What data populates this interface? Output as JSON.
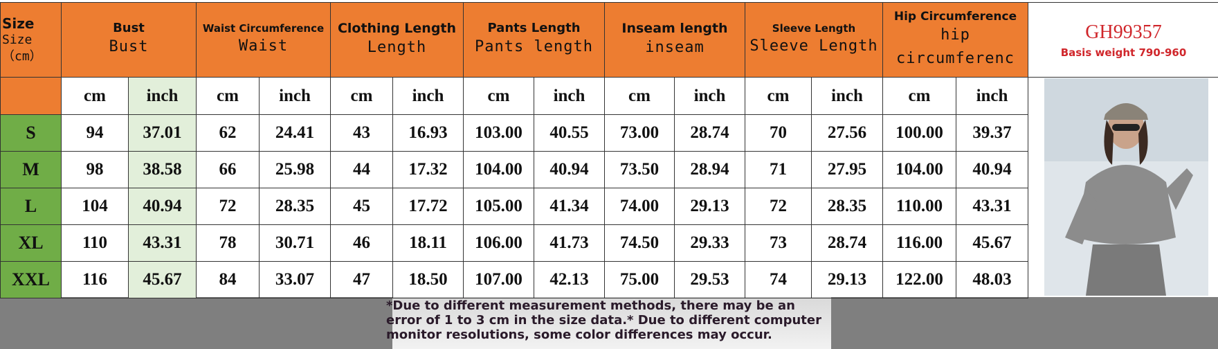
{
  "header": {
    "size_title": "Size",
    "size_subtitle": "Size（cm）",
    "columns": [
      {
        "title": "Bust",
        "subtitle": "Bust"
      },
      {
        "title": "Waist Circumference",
        "subtitle": "Waist"
      },
      {
        "title": "Clothing Length",
        "subtitle": "Length"
      },
      {
        "title": "Pants Length",
        "subtitle": "Pants length"
      },
      {
        "title": "Inseam length",
        "subtitle": "inseam"
      },
      {
        "title": "Sleeve Length",
        "subtitle": "Sleeve Length"
      },
      {
        "title": "Hip Circumference",
        "subtitle": "hip circumferenc"
      }
    ]
  },
  "units": [
    "cm",
    "inch",
    "cm",
    "inch",
    "cm",
    "inch",
    "cm",
    "inch",
    "cm",
    "inch",
    "cm",
    "inch",
    "cm",
    "inch"
  ],
  "table": {
    "rows": [
      {
        "size": "S",
        "cells": [
          "94",
          "37.01",
          "62",
          "24.41",
          "43",
          "16.93",
          "103.00",
          "40.55",
          "73.00",
          "28.74",
          "70",
          "27.56",
          "100.00",
          "39.37"
        ]
      },
      {
        "size": "M",
        "cells": [
          "98",
          "38.58",
          "66",
          "25.98",
          "44",
          "17.32",
          "104.00",
          "40.94",
          "73.50",
          "28.94",
          "71",
          "27.95",
          "104.00",
          "40.94"
        ]
      },
      {
        "size": "L",
        "cells": [
          "104",
          "40.94",
          "72",
          "28.35",
          "45",
          "17.72",
          "105.00",
          "41.34",
          "74.00",
          "29.13",
          "72",
          "28.35",
          "110.00",
          "43.31"
        ]
      },
      {
        "size": "XL",
        "cells": [
          "110",
          "43.31",
          "78",
          "30.71",
          "46",
          "18.11",
          "106.00",
          "41.73",
          "74.50",
          "29.33",
          "73",
          "28.74",
          "116.00",
          "45.67"
        ]
      },
      {
        "size": "XXL",
        "cells": [
          "116",
          "45.67",
          "84",
          "33.07",
          "47",
          "18.50",
          "107.00",
          "42.13",
          "75.00",
          "29.53",
          "74",
          "29.13",
          "122.00",
          "48.03"
        ]
      }
    ]
  },
  "product": {
    "code": "GH99357",
    "weight": "Basis weight 790-960"
  },
  "note": "*Due to different measurement methods, there may be an error of 1 to 3 cm in the size data.* Due to different computer monitor resolutions, some color differences may occur."
}
